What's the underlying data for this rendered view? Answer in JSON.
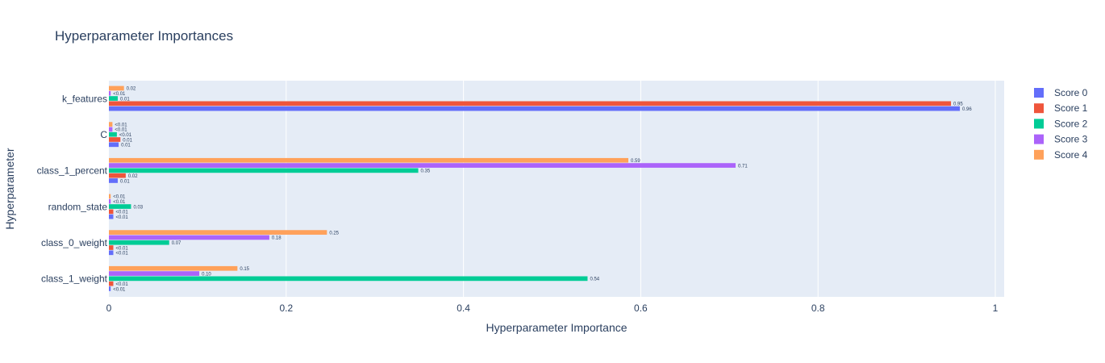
{
  "chart_data": {
    "type": "bar",
    "orientation": "horizontal",
    "title": "Hyperparameter Importances",
    "xlabel": "Hyperparameter Importance",
    "ylabel": "Hyperparameter",
    "xlim": [
      0,
      1.01
    ],
    "xticks": [
      0,
      0.2,
      0.4,
      0.6,
      0.8,
      1
    ],
    "xtick_labels": [
      "0",
      "0.2",
      "0.4",
      "0.6",
      "0.8",
      "1"
    ],
    "categories": [
      "class_1_weight",
      "class_0_weight",
      "random_state",
      "class_1_percent",
      "C",
      "k_features"
    ],
    "grid": true,
    "legend_position": "top-right",
    "series": [
      {
        "name": "Score 0",
        "color": "#636efa",
        "values": [
          0.002,
          0.005,
          0.005,
          0.01,
          0.011,
          0.96
        ],
        "labels": [
          "<0.01",
          "<0.01",
          "<0.01",
          "0.01",
          "0.01",
          "0.96"
        ]
      },
      {
        "name": "Score 1",
        "color": "#ef553b",
        "values": [
          0.005,
          0.005,
          0.005,
          0.019,
          0.013,
          0.95
        ],
        "labels": [
          "<0.01",
          "<0.01",
          "<0.01",
          "0.02",
          "0.01",
          "0.95"
        ]
      },
      {
        "name": "Score 2",
        "color": "#00cc96",
        "values": [
          0.54,
          0.068,
          0.025,
          0.349,
          0.009,
          0.01
        ],
        "labels": [
          "0.54",
          "0.07",
          "0.03",
          "0.35",
          "<0.01",
          "0.01"
        ]
      },
      {
        "name": "Score 3",
        "color": "#ab63fa",
        "values": [
          0.102,
          0.181,
          0.002,
          0.707,
          0.004,
          0.002
        ],
        "labels": [
          "0.10",
          "0.18",
          "<0.01",
          "0.71",
          "<0.01",
          "<0.01"
        ]
      },
      {
        "name": "Score 4",
        "color": "#ffa15a",
        "values": [
          0.145,
          0.246,
          0.002,
          0.586,
          0.004,
          0.017
        ],
        "labels": [
          "0.15",
          "0.25",
          "<0.01",
          "0.59",
          "<0.01",
          "0.02"
        ]
      }
    ]
  }
}
